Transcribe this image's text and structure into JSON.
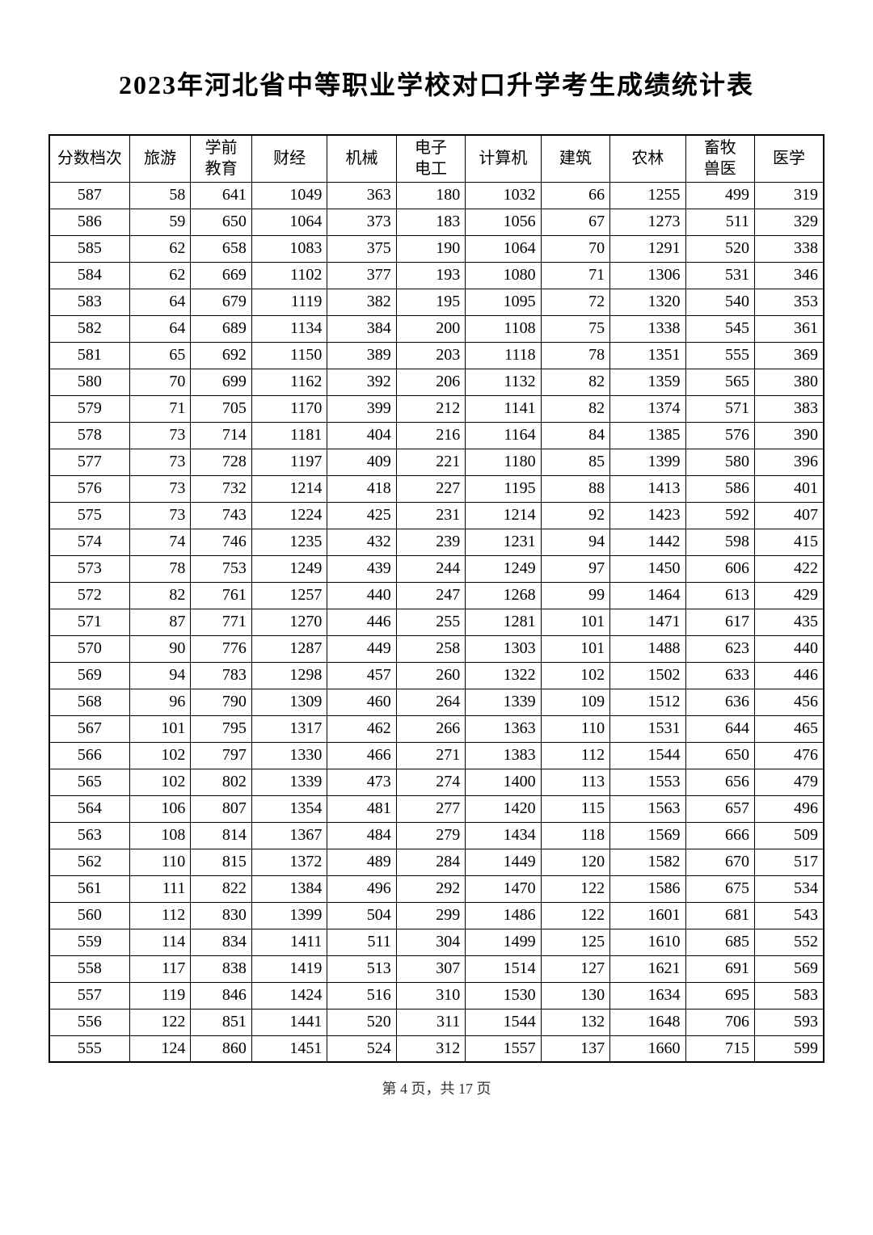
{
  "title": "2023年河北省中等职业学校对口升学考生成绩统计表",
  "footer": "第 4 页，共 17 页",
  "table": {
    "type": "table",
    "background_color": "#ffffff",
    "border_color": "#000000",
    "text_color": "#000000",
    "title_fontsize": 32,
    "cell_fontsize": 20,
    "columns": [
      "分数档次",
      "旅游",
      "学前\n教育",
      "财经",
      "机械",
      "电子\n电工",
      "计算机",
      "建筑",
      "农林",
      "畜牧\n兽医",
      "医学"
    ],
    "rows": [
      [
        "587",
        "58",
        "641",
        "1049",
        "363",
        "180",
        "1032",
        "66",
        "1255",
        "499",
        "319"
      ],
      [
        "586",
        "59",
        "650",
        "1064",
        "373",
        "183",
        "1056",
        "67",
        "1273",
        "511",
        "329"
      ],
      [
        "585",
        "62",
        "658",
        "1083",
        "375",
        "190",
        "1064",
        "70",
        "1291",
        "520",
        "338"
      ],
      [
        "584",
        "62",
        "669",
        "1102",
        "377",
        "193",
        "1080",
        "71",
        "1306",
        "531",
        "346"
      ],
      [
        "583",
        "64",
        "679",
        "1119",
        "382",
        "195",
        "1095",
        "72",
        "1320",
        "540",
        "353"
      ],
      [
        "582",
        "64",
        "689",
        "1134",
        "384",
        "200",
        "1108",
        "75",
        "1338",
        "545",
        "361"
      ],
      [
        "581",
        "65",
        "692",
        "1150",
        "389",
        "203",
        "1118",
        "78",
        "1351",
        "555",
        "369"
      ],
      [
        "580",
        "70",
        "699",
        "1162",
        "392",
        "206",
        "1132",
        "82",
        "1359",
        "565",
        "380"
      ],
      [
        "579",
        "71",
        "705",
        "1170",
        "399",
        "212",
        "1141",
        "82",
        "1374",
        "571",
        "383"
      ],
      [
        "578",
        "73",
        "714",
        "1181",
        "404",
        "216",
        "1164",
        "84",
        "1385",
        "576",
        "390"
      ],
      [
        "577",
        "73",
        "728",
        "1197",
        "409",
        "221",
        "1180",
        "85",
        "1399",
        "580",
        "396"
      ],
      [
        "576",
        "73",
        "732",
        "1214",
        "418",
        "227",
        "1195",
        "88",
        "1413",
        "586",
        "401"
      ],
      [
        "575",
        "73",
        "743",
        "1224",
        "425",
        "231",
        "1214",
        "92",
        "1423",
        "592",
        "407"
      ],
      [
        "574",
        "74",
        "746",
        "1235",
        "432",
        "239",
        "1231",
        "94",
        "1442",
        "598",
        "415"
      ],
      [
        "573",
        "78",
        "753",
        "1249",
        "439",
        "244",
        "1249",
        "97",
        "1450",
        "606",
        "422"
      ],
      [
        "572",
        "82",
        "761",
        "1257",
        "440",
        "247",
        "1268",
        "99",
        "1464",
        "613",
        "429"
      ],
      [
        "571",
        "87",
        "771",
        "1270",
        "446",
        "255",
        "1281",
        "101",
        "1471",
        "617",
        "435"
      ],
      [
        "570",
        "90",
        "776",
        "1287",
        "449",
        "258",
        "1303",
        "101",
        "1488",
        "623",
        "440"
      ],
      [
        "569",
        "94",
        "783",
        "1298",
        "457",
        "260",
        "1322",
        "102",
        "1502",
        "633",
        "446"
      ],
      [
        "568",
        "96",
        "790",
        "1309",
        "460",
        "264",
        "1339",
        "109",
        "1512",
        "636",
        "456"
      ],
      [
        "567",
        "101",
        "795",
        "1317",
        "462",
        "266",
        "1363",
        "110",
        "1531",
        "644",
        "465"
      ],
      [
        "566",
        "102",
        "797",
        "1330",
        "466",
        "271",
        "1383",
        "112",
        "1544",
        "650",
        "476"
      ],
      [
        "565",
        "102",
        "802",
        "1339",
        "473",
        "274",
        "1400",
        "113",
        "1553",
        "656",
        "479"
      ],
      [
        "564",
        "106",
        "807",
        "1354",
        "481",
        "277",
        "1420",
        "115",
        "1563",
        "657",
        "496"
      ],
      [
        "563",
        "108",
        "814",
        "1367",
        "484",
        "279",
        "1434",
        "118",
        "1569",
        "666",
        "509"
      ],
      [
        "562",
        "110",
        "815",
        "1372",
        "489",
        "284",
        "1449",
        "120",
        "1582",
        "670",
        "517"
      ],
      [
        "561",
        "111",
        "822",
        "1384",
        "496",
        "292",
        "1470",
        "122",
        "1586",
        "675",
        "534"
      ],
      [
        "560",
        "112",
        "830",
        "1399",
        "504",
        "299",
        "1486",
        "122",
        "1601",
        "681",
        "543"
      ],
      [
        "559",
        "114",
        "834",
        "1411",
        "511",
        "304",
        "1499",
        "125",
        "1610",
        "685",
        "552"
      ],
      [
        "558",
        "117",
        "838",
        "1419",
        "513",
        "307",
        "1514",
        "127",
        "1621",
        "691",
        "569"
      ],
      [
        "557",
        "119",
        "846",
        "1424",
        "516",
        "310",
        "1530",
        "130",
        "1634",
        "695",
        "583"
      ],
      [
        "556",
        "122",
        "851",
        "1441",
        "520",
        "311",
        "1544",
        "132",
        "1648",
        "706",
        "593"
      ],
      [
        "555",
        "124",
        "860",
        "1451",
        "524",
        "312",
        "1557",
        "137",
        "1660",
        "715",
        "599"
      ]
    ]
  }
}
